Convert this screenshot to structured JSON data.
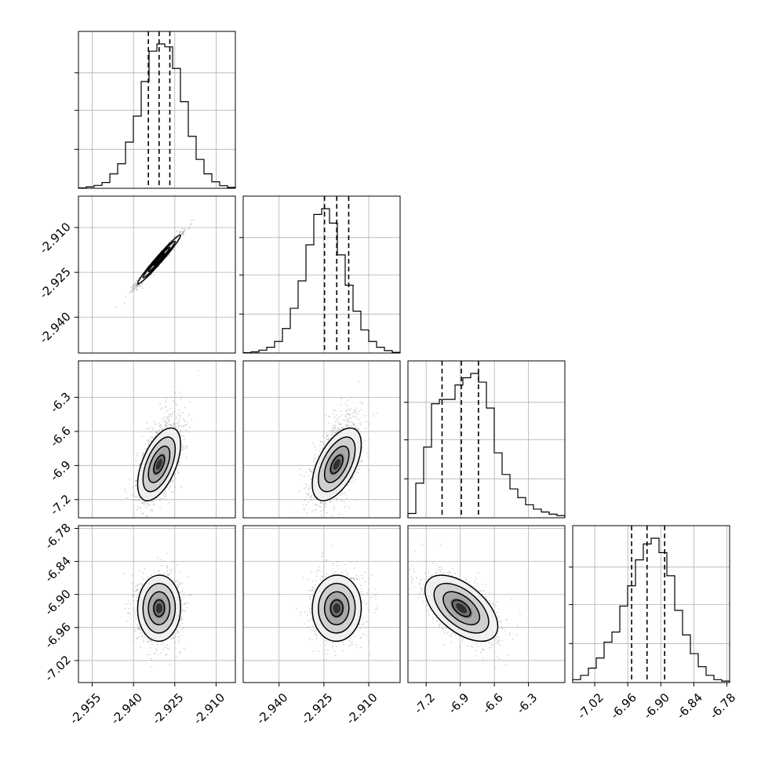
{
  "chart_data": {
    "type": "corner",
    "grid": true,
    "series": [
      {
        "name": "",
        "range": [
          -2.96,
          -2.903
        ],
        "median": -2.9307,
        "q16": -2.9346,
        "q84": -2.9268,
        "hist": [
          0.003,
          0.01,
          0.02,
          0.04,
          0.1,
          0.17,
          0.32,
          0.5,
          0.74,
          0.95,
          1.0,
          0.98,
          0.83,
          0.6,
          0.36,
          0.2,
          0.1,
          0.045,
          0.018,
          0.006
        ]
      },
      {
        "name": "",
        "range": [
          -2.952,
          -2.8995
        ],
        "median": -2.9207,
        "q16": -2.9248,
        "q84": -2.9167,
        "hist": [
          0.003,
          0.008,
          0.02,
          0.04,
          0.08,
          0.17,
          0.31,
          0.5,
          0.75,
          0.96,
          1.0,
          0.9,
          0.68,
          0.47,
          0.29,
          0.16,
          0.08,
          0.04,
          0.017,
          0.005
        ]
      },
      {
        "name": "",
        "range": [
          -7.36,
          -5.98
        ],
        "median": -6.89,
        "q16": -7.06,
        "q84": -6.74,
        "hist": [
          0.03,
          0.24,
          0.49,
          0.79,
          0.82,
          0.82,
          0.92,
          0.97,
          1.0,
          0.94,
          0.76,
          0.45,
          0.3,
          0.2,
          0.14,
          0.09,
          0.06,
          0.04,
          0.025,
          0.015
        ]
      },
      {
        "name": "",
        "range": [
          -7.06,
          -6.775
        ],
        "median": -6.925,
        "q16": -6.953,
        "q84": -6.893,
        "hist": [
          0.02,
          0.05,
          0.1,
          0.17,
          0.28,
          0.35,
          0.53,
          0.67,
          0.85,
          0.96,
          1.0,
          0.9,
          0.74,
          0.5,
          0.33,
          0.2,
          0.11,
          0.05,
          0.02,
          0.01
        ]
      }
    ],
    "ticks": [
      [
        "-2.955",
        "-2.940",
        "-2.925",
        "-2.910"
      ],
      [
        "-2.940",
        "-2.925",
        "-2.910"
      ],
      [
        "-7.2",
        "-6.9",
        "-6.6",
        "-6.3"
      ],
      [
        "-7.02",
        "-6.96",
        "-6.90",
        "-6.84",
        "-6.78"
      ]
    ],
    "tick_values": [
      [
        -2.955,
        -2.94,
        -2.925,
        -2.91
      ],
      [
        -2.94,
        -2.925,
        -2.91
      ],
      [
        -7.2,
        -6.9,
        -6.6,
        -6.3
      ],
      [
        -7.02,
        -6.96,
        -6.9,
        -6.84,
        -6.78
      ]
    ],
    "correlations": {
      "1-0": 0.98,
      "2-0": 0.55,
      "2-1": 0.55,
      "3-0": 0.02,
      "3-1": 0.02,
      "3-2": -0.55
    },
    "sigma": [
      0.0039,
      0.0041,
      0.16,
      0.03
    ],
    "contour_levels": [
      0.5,
      1.0,
      1.5,
      2.0
    ],
    "colors": {
      "line": "#000000",
      "grid": "#b0b0b0",
      "points": "#808080"
    }
  }
}
